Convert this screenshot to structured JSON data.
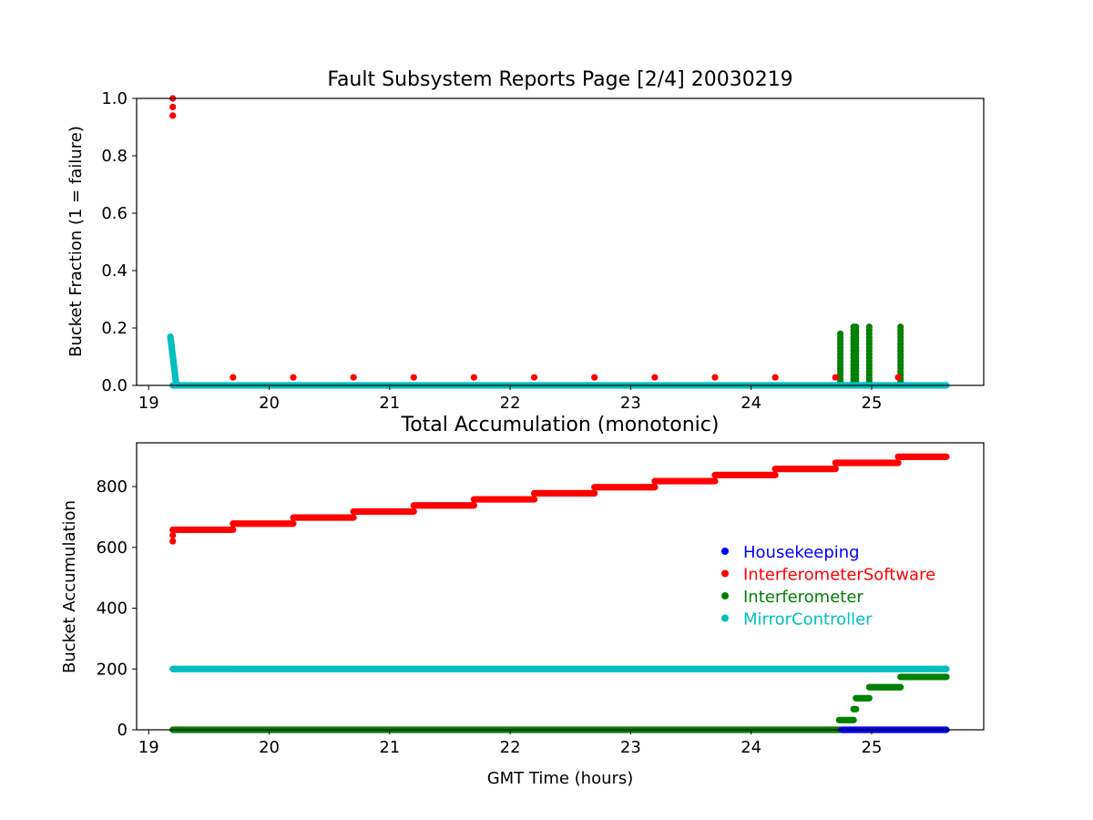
{
  "chart_data": [
    {
      "type": "scatter",
      "title": "Fault Subsystem Reports Page [2/4] 20030219",
      "xlabel": "",
      "ylabel": "Bucket Fraction (1 = failure)",
      "xlim": [
        18.9,
        25.93
      ],
      "ylim": [
        0,
        1
      ],
      "xticks": [
        19,
        20,
        21,
        22,
        23,
        24,
        25
      ],
      "yticks": [
        0.0,
        0.2,
        0.4,
        0.6,
        0.8,
        1.0
      ],
      "ytick_labels": [
        "0.0",
        "0.2",
        "0.4",
        "0.6",
        "0.8",
        "1.0"
      ],
      "grid": false,
      "series": [
        {
          "name": "InterferometerSoftware",
          "color": "#ff0000",
          "points": [
            [
              19.2,
              1.0
            ],
            [
              19.2,
              0.97
            ],
            [
              19.2,
              0.94
            ],
            [
              19.7,
              0.028
            ],
            [
              20.2,
              0.028
            ],
            [
              20.7,
              0.028
            ],
            [
              21.2,
              0.028
            ],
            [
              21.7,
              0.028
            ],
            [
              22.2,
              0.028
            ],
            [
              22.7,
              0.028
            ],
            [
              23.2,
              0.028
            ],
            [
              23.7,
              0.028
            ],
            [
              24.2,
              0.028
            ],
            [
              24.7,
              0.028
            ],
            [
              25.22,
              0.028
            ]
          ]
        },
        {
          "name": "Interferometer",
          "color": "#008000",
          "columns": [
            {
              "x": 24.74,
              "max": 0.19
            },
            {
              "x": 24.85,
              "max": 0.21
            },
            {
              "x": 24.87,
              "max": 0.21
            },
            {
              "x": 24.98,
              "max": 0.21
            },
            {
              "x": 25.24,
              "max": 0.21
            }
          ]
        },
        {
          "name": "MirrorController",
          "color": "#00bfbf",
          "spike": {
            "x": [
              19.18,
              19.23
            ],
            "max": 0.17
          },
          "line": {
            "x": [
              19.2,
              25.62
            ],
            "y": 0.0
          }
        }
      ]
    },
    {
      "type": "scatter",
      "title": "Total Accumulation (monotonic)",
      "xlabel": "GMT Time (hours)",
      "ylabel": "Bucket Accumulation",
      "xlim": [
        18.9,
        25.93
      ],
      "ylim": [
        0,
        944
      ],
      "xticks": [
        19,
        20,
        21,
        22,
        23,
        24,
        25
      ],
      "yticks": [
        0,
        200,
        400,
        600,
        800
      ],
      "ytick_labels": [
        "0",
        "200",
        "400",
        "600",
        "800"
      ],
      "grid": false,
      "legend": {
        "position": "center-right",
        "entries": [
          {
            "label": "Housekeeping",
            "color": "#0000ff"
          },
          {
            "label": "InterferometerSoftware",
            "color": "#ff0000"
          },
          {
            "label": "Interferometer",
            "color": "#008000"
          },
          {
            "label": "MirrorController",
            "color": "#00bfbf"
          }
        ]
      },
      "series": [
        {
          "name": "Housekeeping",
          "color": "#0000ff",
          "steps": [
            [
              24.75,
              25.62,
              0
            ]
          ]
        },
        {
          "name": "InterferometerSoftware",
          "color": "#ff0000",
          "start_points": [
            [
              19.2,
              620
            ],
            [
              19.2,
              640
            ]
          ],
          "steps": [
            [
              19.2,
              19.7,
              658
            ],
            [
              19.7,
              20.2,
              678
            ],
            [
              20.2,
              20.7,
              698
            ],
            [
              20.7,
              21.2,
              718
            ],
            [
              21.2,
              21.7,
              738
            ],
            [
              21.7,
              22.2,
              758
            ],
            [
              22.2,
              22.7,
              778
            ],
            [
              22.7,
              23.2,
              798
            ],
            [
              23.2,
              23.7,
              818
            ],
            [
              23.7,
              24.2,
              838
            ],
            [
              24.2,
              24.7,
              858
            ],
            [
              24.7,
              25.22,
              878
            ],
            [
              25.22,
              25.62,
              898
            ]
          ]
        },
        {
          "name": "Interferometer",
          "color": "#008000",
          "steps": [
            [
              19.2,
              24.73,
              0
            ],
            [
              24.73,
              24.85,
              32
            ],
            [
              24.85,
              24.87,
              68
            ],
            [
              24.87,
              24.98,
              104
            ],
            [
              24.98,
              25.24,
              140
            ],
            [
              25.24,
              25.62,
              174
            ]
          ]
        },
        {
          "name": "MirrorController",
          "color": "#00bfbf",
          "steps": [
            [
              19.2,
              25.62,
              200
            ]
          ]
        }
      ]
    }
  ]
}
